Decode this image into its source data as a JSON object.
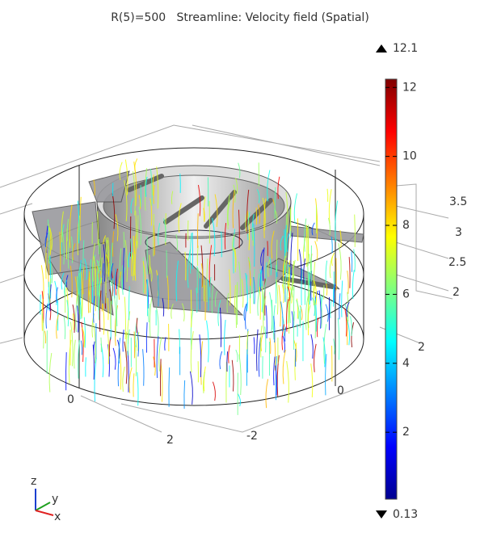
{
  "title": "R(5)=500   Streamline: Velocity field (Spatial)",
  "colorbar": {
    "max": 12.1,
    "min": 0.13,
    "ticks": [
      2,
      4,
      6,
      8,
      10,
      12
    ]
  },
  "axis_labels": [
    "3.5",
    "3",
    "2.5",
    "2",
    "2",
    "0",
    "0",
    "2",
    "-2"
  ],
  "triad": [
    "z",
    "y",
    "x"
  ]
}
